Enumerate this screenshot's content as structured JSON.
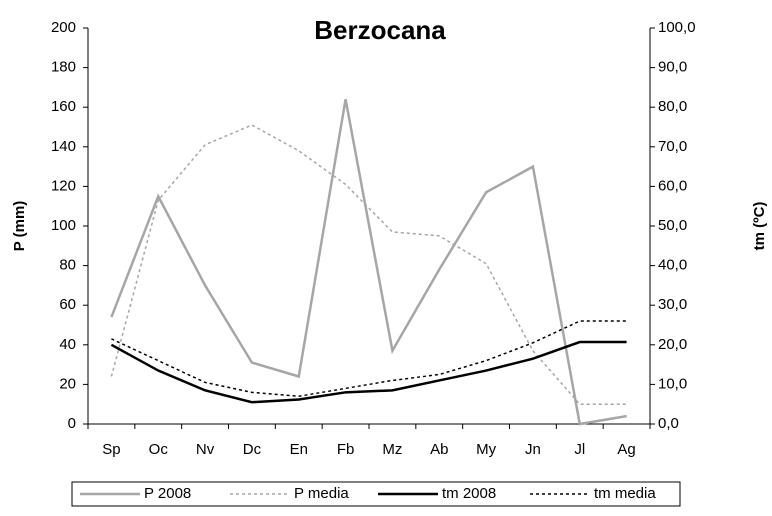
{
  "chart_data": {
    "type": "line",
    "title": "Berzocana",
    "ylabel": "P (mm)",
    "y2label": "tm (ºC)",
    "categories": [
      "Sp",
      "Oc",
      "Nv",
      "Dc",
      "En",
      "Fb",
      "Mz",
      "Ab",
      "My",
      "Jn",
      "Jl",
      "Ag"
    ],
    "ylim": [
      0,
      200
    ],
    "yticks": [
      0,
      20,
      40,
      60,
      80,
      100,
      120,
      140,
      160,
      180,
      200
    ],
    "y2lim": [
      0,
      100
    ],
    "y2ticks": [
      {
        "value": 0,
        "label": "0,0"
      },
      {
        "value": 10,
        "label": "10,0"
      },
      {
        "value": 20,
        "label": "20,0"
      },
      {
        "value": 30,
        "label": "30,0"
      },
      {
        "value": 40,
        "label": "40,0"
      },
      {
        "value": 50,
        "label": "50,0"
      },
      {
        "value": 60,
        "label": "60,0"
      },
      {
        "value": 70,
        "label": "70,0"
      },
      {
        "value": 80,
        "label": "80,0"
      },
      {
        "value": 90,
        "label": "90,0"
      },
      {
        "value": 100,
        "label": "100,0"
      }
    ],
    "grid": false,
    "legend": "bottom",
    "series": [
      {
        "name": "P 2008",
        "color": "#a6a6a6",
        "line_style": "solid",
        "values": [
          54,
          115,
          70,
          31,
          24,
          164,
          37,
          78,
          117,
          130,
          0,
          4
        ]
      },
      {
        "name": "P media",
        "color": "#a6a6a6",
        "line_style": "dotted",
        "values": [
          24,
          113,
          141,
          151,
          138,
          121,
          97,
          95,
          81,
          37,
          10,
          10
        ]
      },
      {
        "name": "tm 2008",
        "color": "#000000",
        "line_style": "solid",
        "axis": "y2",
        "values": [
          20,
          13.5,
          8.5,
          5.5,
          6.2,
          8,
          8.5,
          11,
          13.5,
          16.5,
          20.7,
          20.7
        ]
      },
      {
        "name": "tm media",
        "color": "#000000",
        "line_style": "dotted",
        "axis": "y2",
        "values": [
          21.5,
          16,
          10.5,
          8,
          7,
          9,
          11,
          12.5,
          16,
          20.5,
          26,
          26
        ]
      }
    ]
  }
}
